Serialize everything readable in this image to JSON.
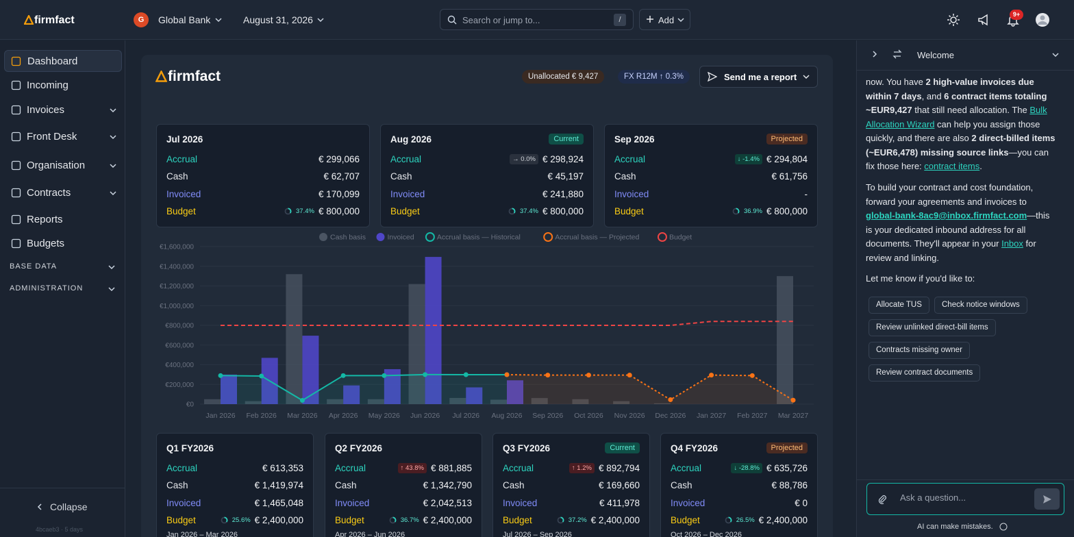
{
  "topbar": {
    "logo": "firmfact",
    "org_initial": "G",
    "org": "Global Bank",
    "date": "August 31, 2026",
    "search": "Search or jump to...",
    "shortcut": "/",
    "add": "Add",
    "notifications": "9+"
  },
  "sidebar": {
    "items": [
      {
        "label": "Dashboard",
        "active": true
      },
      {
        "label": "Incoming"
      },
      {
        "label": "Invoices",
        "expandable": true
      },
      {
        "label": "Front Desk",
        "expandable": true
      },
      {
        "label": "Organisation",
        "expandable": true
      },
      {
        "label": "Contracts",
        "expandable": true
      },
      {
        "label": "Reports"
      },
      {
        "label": "Budgets"
      }
    ],
    "sections": [
      "BASE DATA",
      "ADMINISTRATION"
    ],
    "collapse": "Collapse",
    "version": "4bcaeb3 · 5 days"
  },
  "report": {
    "logo": "firmfact",
    "unallocated": "Unallocated € 9,427",
    "fx": "FX R12M ↑ 0.3%",
    "send": "Send me a report"
  },
  "month_cards": [
    {
      "title": "Jul 2026",
      "rows": [
        {
          "label": "Accrual",
          "value": "€ 299,066"
        },
        {
          "label": "Cash",
          "value": "€ 62,707"
        },
        {
          "label": "Invoiced",
          "value": "€ 170,099"
        },
        {
          "label": "Budget",
          "pct": "37.4%",
          "value": "€ 800,000"
        }
      ]
    },
    {
      "title": "Aug 2026",
      "badge": "Current",
      "badge_color": "#0f4f47",
      "badge_text_color": "#5eead4",
      "rows": [
        {
          "label": "Accrual",
          "change": "→ 0.0%",
          "value": "€ 298,924"
        },
        {
          "label": "Cash",
          "value": "€ 45,197"
        },
        {
          "label": "Invoiced",
          "value": "€ 241,880"
        },
        {
          "label": "Budget",
          "pct": "37.4%",
          "value": "€ 800,000"
        }
      ]
    },
    {
      "title": "Sep 2026",
      "badge": "Projected",
      "badge_color": "#4a2b22",
      "badge_text_color": "#fdba74",
      "rows": [
        {
          "label": "Accrual",
          "change": "↓ -1.4%",
          "value": "€ 294,804"
        },
        {
          "label": "Cash",
          "value": "€ 61,756"
        },
        {
          "label": "Invoiced",
          "value": "-"
        },
        {
          "label": "Budget",
          "pct": "36.9%",
          "value": "€ 800,000"
        }
      ]
    }
  ],
  "chart_data": {
    "type": "bar",
    "categories": [
      "Jan 2026",
      "Feb 2026",
      "Mar 2026",
      "Apr 2026",
      "May 2026",
      "Jun 2026",
      "Jul 2026",
      "Aug 2026",
      "Sep 2026",
      "Oct 2026",
      "Nov 2026",
      "Dec 2026",
      "Jan 2027",
      "Feb 2027",
      "Mar 2027"
    ],
    "series": [
      {
        "name": "Cash basis",
        "type": "bar",
        "color": "#4b5563",
        "values": [
          50000,
          30000,
          1320000,
          50000,
          50000,
          1220000,
          62707,
          45197,
          61756,
          50000,
          30000,
          8000,
          0,
          0,
          1300000
        ]
      },
      {
        "name": "Invoiced",
        "type": "bar",
        "color": "#4f46c8",
        "values": [
          300000,
          470000,
          695000,
          190000,
          355000,
          1495000,
          170099,
          241880,
          null,
          null,
          null,
          null,
          null,
          null,
          null
        ]
      },
      {
        "name": "Accrual basis — Historical",
        "type": "line",
        "color": "#14b8a6",
        "values": [
          290000,
          285000,
          38000,
          290000,
          290000,
          300000,
          299066,
          298924,
          null,
          null,
          null,
          null,
          null,
          null,
          null
        ]
      },
      {
        "name": "Accrual basis — Projected",
        "type": "line",
        "dashed": true,
        "color": "#f97316",
        "values": [
          null,
          null,
          null,
          null,
          null,
          null,
          null,
          298924,
          294804,
          295000,
          295000,
          45000,
          295000,
          290000,
          40000
        ]
      },
      {
        "name": "Budget",
        "type": "line",
        "dashed": true,
        "nodots": true,
        "color": "#ef4444",
        "values": [
          800000,
          800000,
          800000,
          800000,
          800000,
          800000,
          800000,
          800000,
          800000,
          800000,
          800000,
          800000,
          840000,
          840000,
          840000
        ]
      }
    ],
    "ylim": [
      0,
      1600000
    ],
    "yticks": [
      {
        "value": 0,
        "label": "€0"
      },
      {
        "value": 200000,
        "label": "€200,000"
      },
      {
        "value": 400000,
        "label": "€400,000"
      },
      {
        "value": 600000,
        "label": "€600,000"
      },
      {
        "value": 800000,
        "label": "€800,000"
      },
      {
        "value": 1000000,
        "label": "€1,000,000"
      },
      {
        "value": 1200000,
        "label": "€1,200,000"
      },
      {
        "value": 1400000,
        "label": "€1,400,000"
      },
      {
        "value": 1600000,
        "label": "€1,600,000"
      }
    ],
    "grid": true,
    "legend": "top"
  },
  "quarter_cards": [
    {
      "title": "Q1 FY2026",
      "rows": [
        {
          "label": "Accrual",
          "value": "€ 613,353"
        },
        {
          "label": "Cash",
          "value": "€ 1,419,974"
        },
        {
          "label": "Invoiced",
          "value": "€ 1,465,048"
        },
        {
          "label": "Budget",
          "pct": "25.6%",
          "value": "€ 2,400,000"
        }
      ],
      "period": "Jan 2026 – Mar 2026"
    },
    {
      "title": "Q2 FY2026",
      "rows": [
        {
          "label": "Accrual",
          "change": "↑ 43.8%",
          "value": "€ 881,885"
        },
        {
          "label": "Cash",
          "value": "€ 1,342,790"
        },
        {
          "label": "Invoiced",
          "value": "€ 2,042,513"
        },
        {
          "label": "Budget",
          "pct": "36.7%",
          "value": "€ 2,400,000"
        }
      ],
      "period": "Apr 2026 – Jun 2026"
    },
    {
      "title": "Q3 FY2026",
      "badge": "Current",
      "badge_color": "#0f4f47",
      "badge_text_color": "#5eead4",
      "rows": [
        {
          "label": "Accrual",
          "change": "↑ 1.2%",
          "value": "€ 892,794"
        },
        {
          "label": "Cash",
          "value": "€ 169,660"
        },
        {
          "label": "Invoiced",
          "value": "€ 411,978"
        },
        {
          "label": "Budget",
          "pct": "37.2%",
          "value": "€ 2,400,000"
        }
      ],
      "period": "Jul 2026 – Sep 2026"
    },
    {
      "title": "Q4 FY2026",
      "badge": "Projected",
      "badge_color": "#4a2b22",
      "badge_text_color": "#fdba74",
      "rows": [
        {
          "label": "Accrual",
          "change": "↓ -28.8%",
          "value": "€ 635,726"
        },
        {
          "label": "Cash",
          "value": "€ 88,786"
        },
        {
          "label": "Invoiced",
          "value": "€ 0"
        },
        {
          "label": "Budget",
          "pct": "26.5%",
          "value": "€ 2,400,000"
        }
      ],
      "period": "Oct 2026 – Dec 2026"
    }
  ],
  "chat": {
    "title": "Welcome",
    "paragraphs": [
      [
        {
          "t": "now. You have "
        },
        {
          "b": "2 high-value invoices due within 7 days"
        },
        {
          "t": ", and "
        },
        {
          "b": "6 contract items totaling ~EUR9,427"
        },
        {
          "t": " that still need allocation. The "
        },
        {
          "a": "Bulk Allocation Wizard"
        },
        {
          "t": " can help you assign those quickly, and there are also "
        },
        {
          "b": "2 direct-billed items (~EUR6,478) missing source links"
        },
        {
          "t": "—you can fix those here: "
        },
        {
          "a": "contract items"
        },
        {
          "t": "."
        }
      ],
      [
        {
          "t": "To build your contract and cost foundation, forward your agreements and invoices to "
        },
        {
          "ab": "global-bank-8ac9@inbox.firmfact.com"
        },
        {
          "t": "—this is your dedicated inbound address for all documents. They'll appear in your "
        },
        {
          "a": "Inbox"
        },
        {
          "t": " for review and linking."
        }
      ],
      [
        {
          "t": "Let me know if you'd like to:"
        }
      ]
    ],
    "chips": [
      "Allocate TUS",
      "Check notice windows",
      "Review unlinked direct-bill items",
      "Contracts missing owner",
      "Review contract documents"
    ],
    "placeholder": "Ask a question...",
    "disclaimer": "AI can make mistakes."
  }
}
